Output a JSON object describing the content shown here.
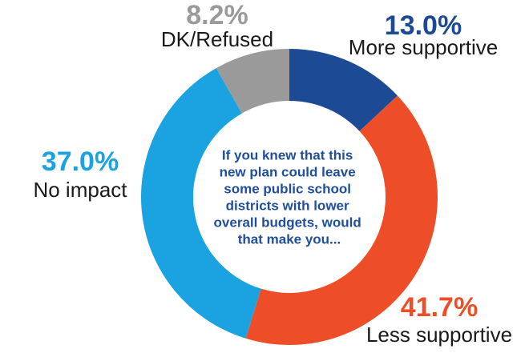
{
  "chart_data": {
    "type": "donut",
    "title": "",
    "center_text": [
      "If you knew that this",
      "new plan could leave",
      "some public school",
      "districts with lower",
      "overall budgets, would",
      "that make you..."
    ],
    "slices": [
      {
        "label": "More supportive",
        "value": 13.0,
        "display": "13.0%",
        "color": "#1c4a94"
      },
      {
        "label": "Less supportive",
        "value": 41.7,
        "display": "41.7%",
        "color": "#ee4e27"
      },
      {
        "label": "No impact",
        "value": 37.0,
        "display": "37.0%",
        "color": "#1aa3e0"
      },
      {
        "label": "DK/Refused",
        "value": 8.2,
        "display": "8.2%",
        "color": "#9a9a9a"
      }
    ]
  }
}
